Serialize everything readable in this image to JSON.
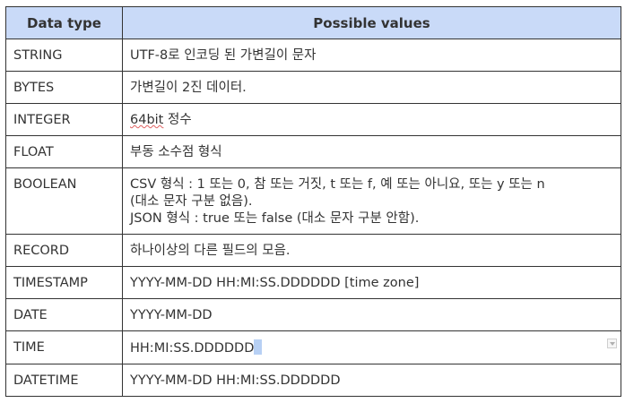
{
  "headers": {
    "data_type": "Data type",
    "possible_values": "Possible values"
  },
  "rows": [
    {
      "type": "STRING",
      "value": "UTF-8로 인코딩 된 가변길이 문자"
    },
    {
      "type": "BYTES",
      "value": "가변길이 2진 데이터."
    },
    {
      "type": "INTEGER",
      "value_prefix": "64bit",
      "value_suffix": " 정수"
    },
    {
      "type": "FLOAT",
      "value": "부동 소수점 형식"
    },
    {
      "type": "BOOLEAN",
      "value_line1": "CSV 형식 : 1 또는 0, 참 또는 거짓, t 또는 f, 예 또는 아니요, 또는 y 또는 n",
      "value_line2": "(대소 문자 구분 없음).",
      "value_line3": "JSON 형식 : true 또는 false (대소 문자 구분 안함)."
    },
    {
      "type": "RECORD",
      "value": "하나이상의 다른 필드의 모음."
    },
    {
      "type": "TIMESTAMP",
      "value": "YYYY-MM-DD HH:MI:SS.DDDDDD [time zone]"
    },
    {
      "type": "DATE",
      "value": "YYYY-MM-DD"
    },
    {
      "type": "TIME",
      "value": "HH:MI:SS.DDDDDD"
    },
    {
      "type": "DATETIME",
      "value": "YYYY-MM-DD HH:MI:SS.DDDDDD"
    }
  ],
  "icons": {
    "cell_dropdown": "chevron-down-icon"
  },
  "colors": {
    "header_background": "#c9daf8",
    "border": "#333333",
    "text": "#333333",
    "selection": "#b7d0f4"
  }
}
